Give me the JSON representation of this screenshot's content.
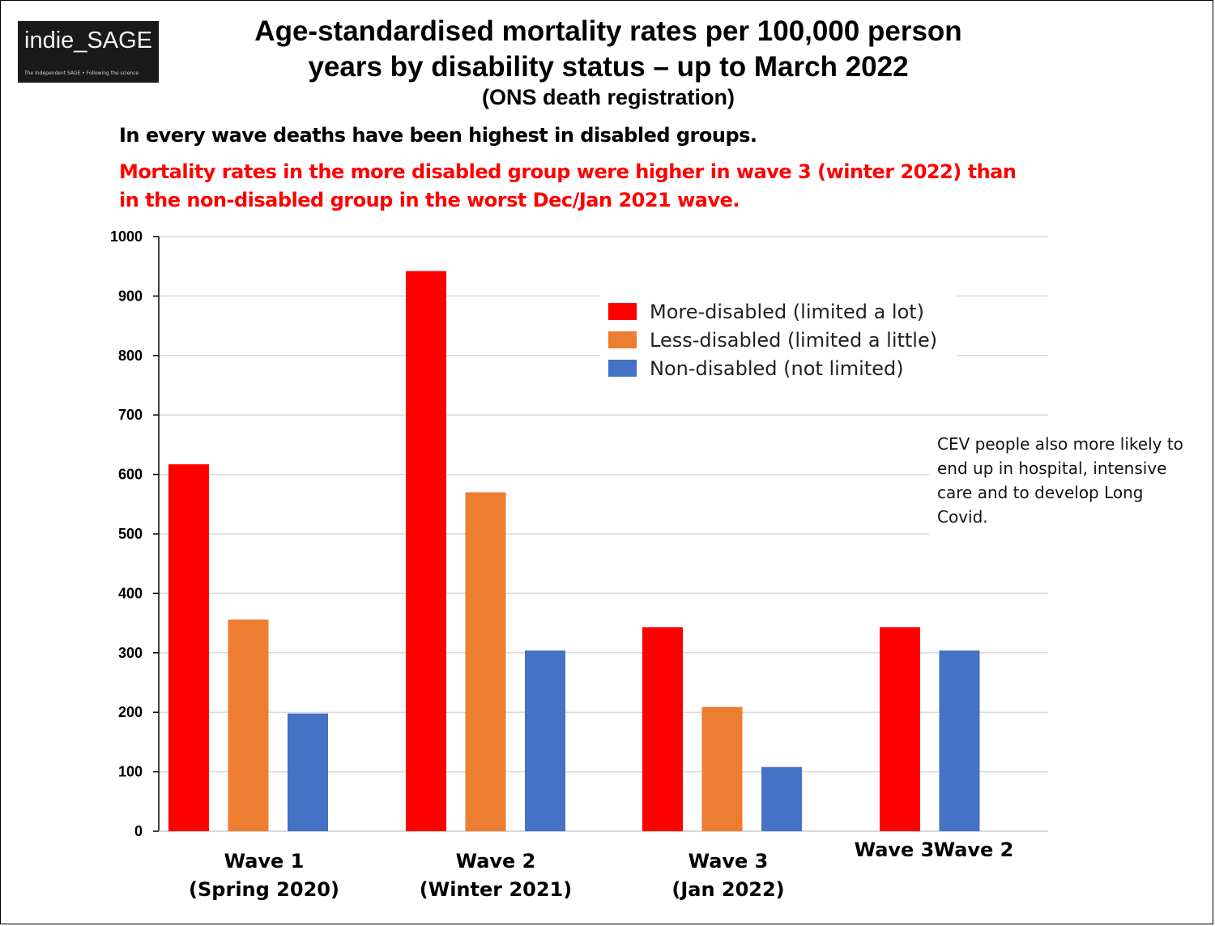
{
  "logo": {
    "text": "indie_SAGE",
    "tagline": "The Independent SAGE • Following the science"
  },
  "title_line1": "Age-standardised mortality rates per 100,000 person",
  "title_line2": "years by disability status – up to March 2022",
  "subtitle": "(ONS death registration)",
  "note1": "In every wave deaths have been highest in disabled groups.",
  "note2": "Mortality rates in the more disabled group were higher in wave 3 (winter 2022) than in the non-disabled group in the worst Dec/Jan 2021 wave.",
  "side_note": "CEV people also more likely to end up in hospital, intensive care and to develop Long Covid.",
  "chart_data": {
    "type": "bar",
    "title": "Age-standardised mortality rates per 100,000 person years by disability status – up to March 2022",
    "xlabel": "",
    "ylabel": "",
    "ylim": [
      0,
      1000
    ],
    "yticks": [
      0,
      100,
      200,
      300,
      400,
      500,
      600,
      700,
      800,
      900,
      1000
    ],
    "grid": true,
    "legend_position": "top-right",
    "groups": [
      {
        "label_lines": [
          "Wave 1",
          "(Spring 2020)"
        ],
        "values": [
          617,
          356,
          198
        ]
      },
      {
        "label_lines": [
          "Wave 2",
          "(Winter 2021)"
        ],
        "values": [
          942,
          570,
          304
        ]
      },
      {
        "label_lines": [
          "Wave 3",
          "(Jan 2022)"
        ],
        "values": [
          343,
          209,
          108
        ]
      },
      {
        "label_lines": [
          "Wave 3",
          "Wave 2"
        ],
        "values": [
          343,
          null,
          304
        ]
      }
    ],
    "series": [
      {
        "name": "More-disabled (limited a lot)",
        "color": "#ff0000",
        "values": [
          617,
          942,
          343,
          343
        ]
      },
      {
        "name": "Less-disabled (limited a little)",
        "color": "#ed7d31",
        "values": [
          356,
          570,
          209,
          null
        ]
      },
      {
        "name": "Non-disabled (not limited)",
        "color": "#4472c4",
        "values": [
          198,
          304,
          108,
          304
        ]
      }
    ]
  }
}
